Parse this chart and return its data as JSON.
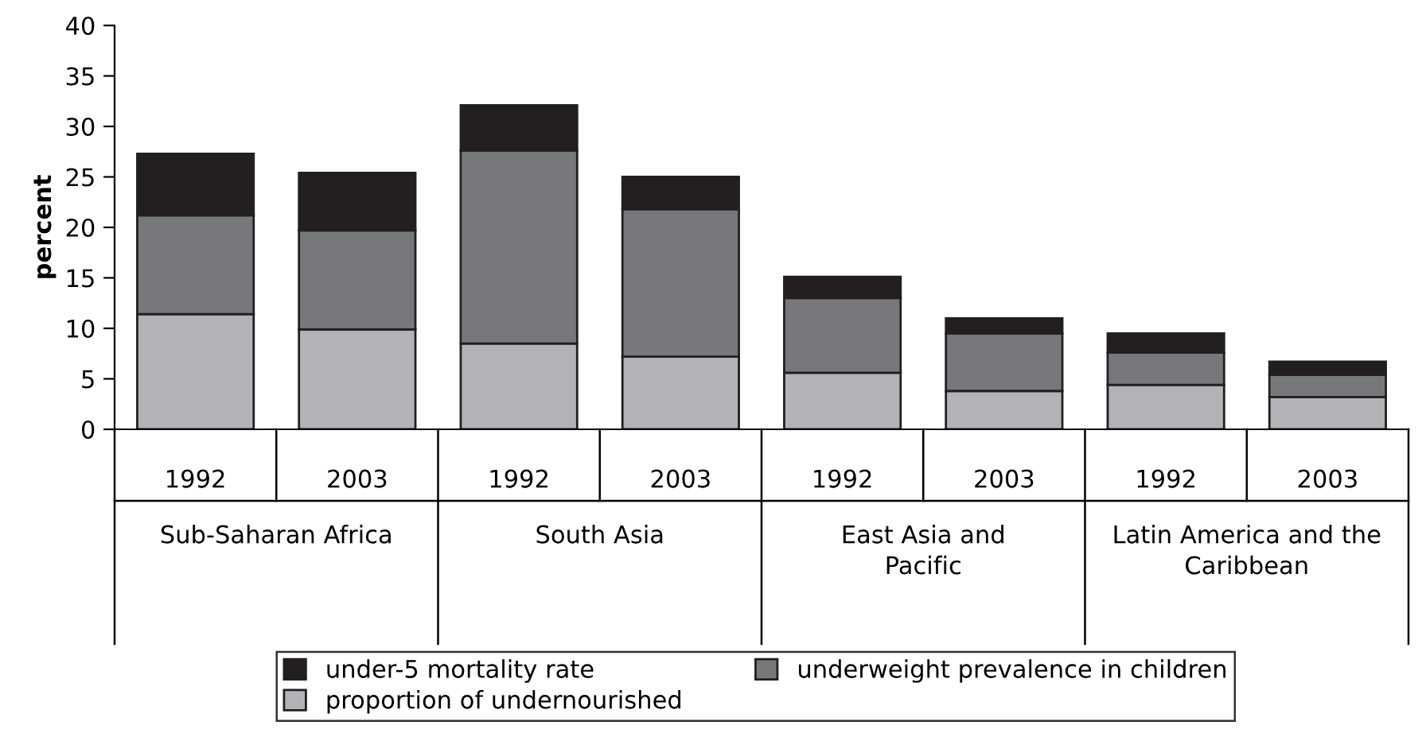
{
  "chart_data": {
    "type": "bar",
    "stacked": true,
    "ylabel": "percent",
    "categories": [
      "1992",
      "2003",
      "1992",
      "2003",
      "1992",
      "2003",
      "1992",
      "2003"
    ],
    "series": [
      {
        "name": "proportion of undernourished",
        "color": "#b1b3b6",
        "values": [
          11.4,
          9.9,
          8.5,
          7.2,
          5.6,
          3.8,
          4.4,
          3.2
        ]
      },
      {
        "name": "underweight prevalence in children",
        "color": "#77787b",
        "values": [
          9.8,
          9.8,
          19.1,
          14.6,
          7.4,
          5.7,
          3.2,
          2.2
        ]
      },
      {
        "name": "under-5 mortality rate",
        "color": "#231f20",
        "values": [
          6.1,
          5.7,
          4.5,
          3.2,
          2.1,
          1.5,
          1.9,
          1.3
        ]
      }
    ],
    "annotations": [
      "Sub-Saharan Africa",
      "South Asia",
      "East Asia and\nPacific",
      "Latin America and the\nCaribbean"
    ],
    "ylim": [
      0,
      40
    ],
    "yticks": [
      0,
      5,
      10,
      15,
      20,
      25,
      30,
      35,
      40
    ],
    "grid": false,
    "legend": "bottom"
  }
}
